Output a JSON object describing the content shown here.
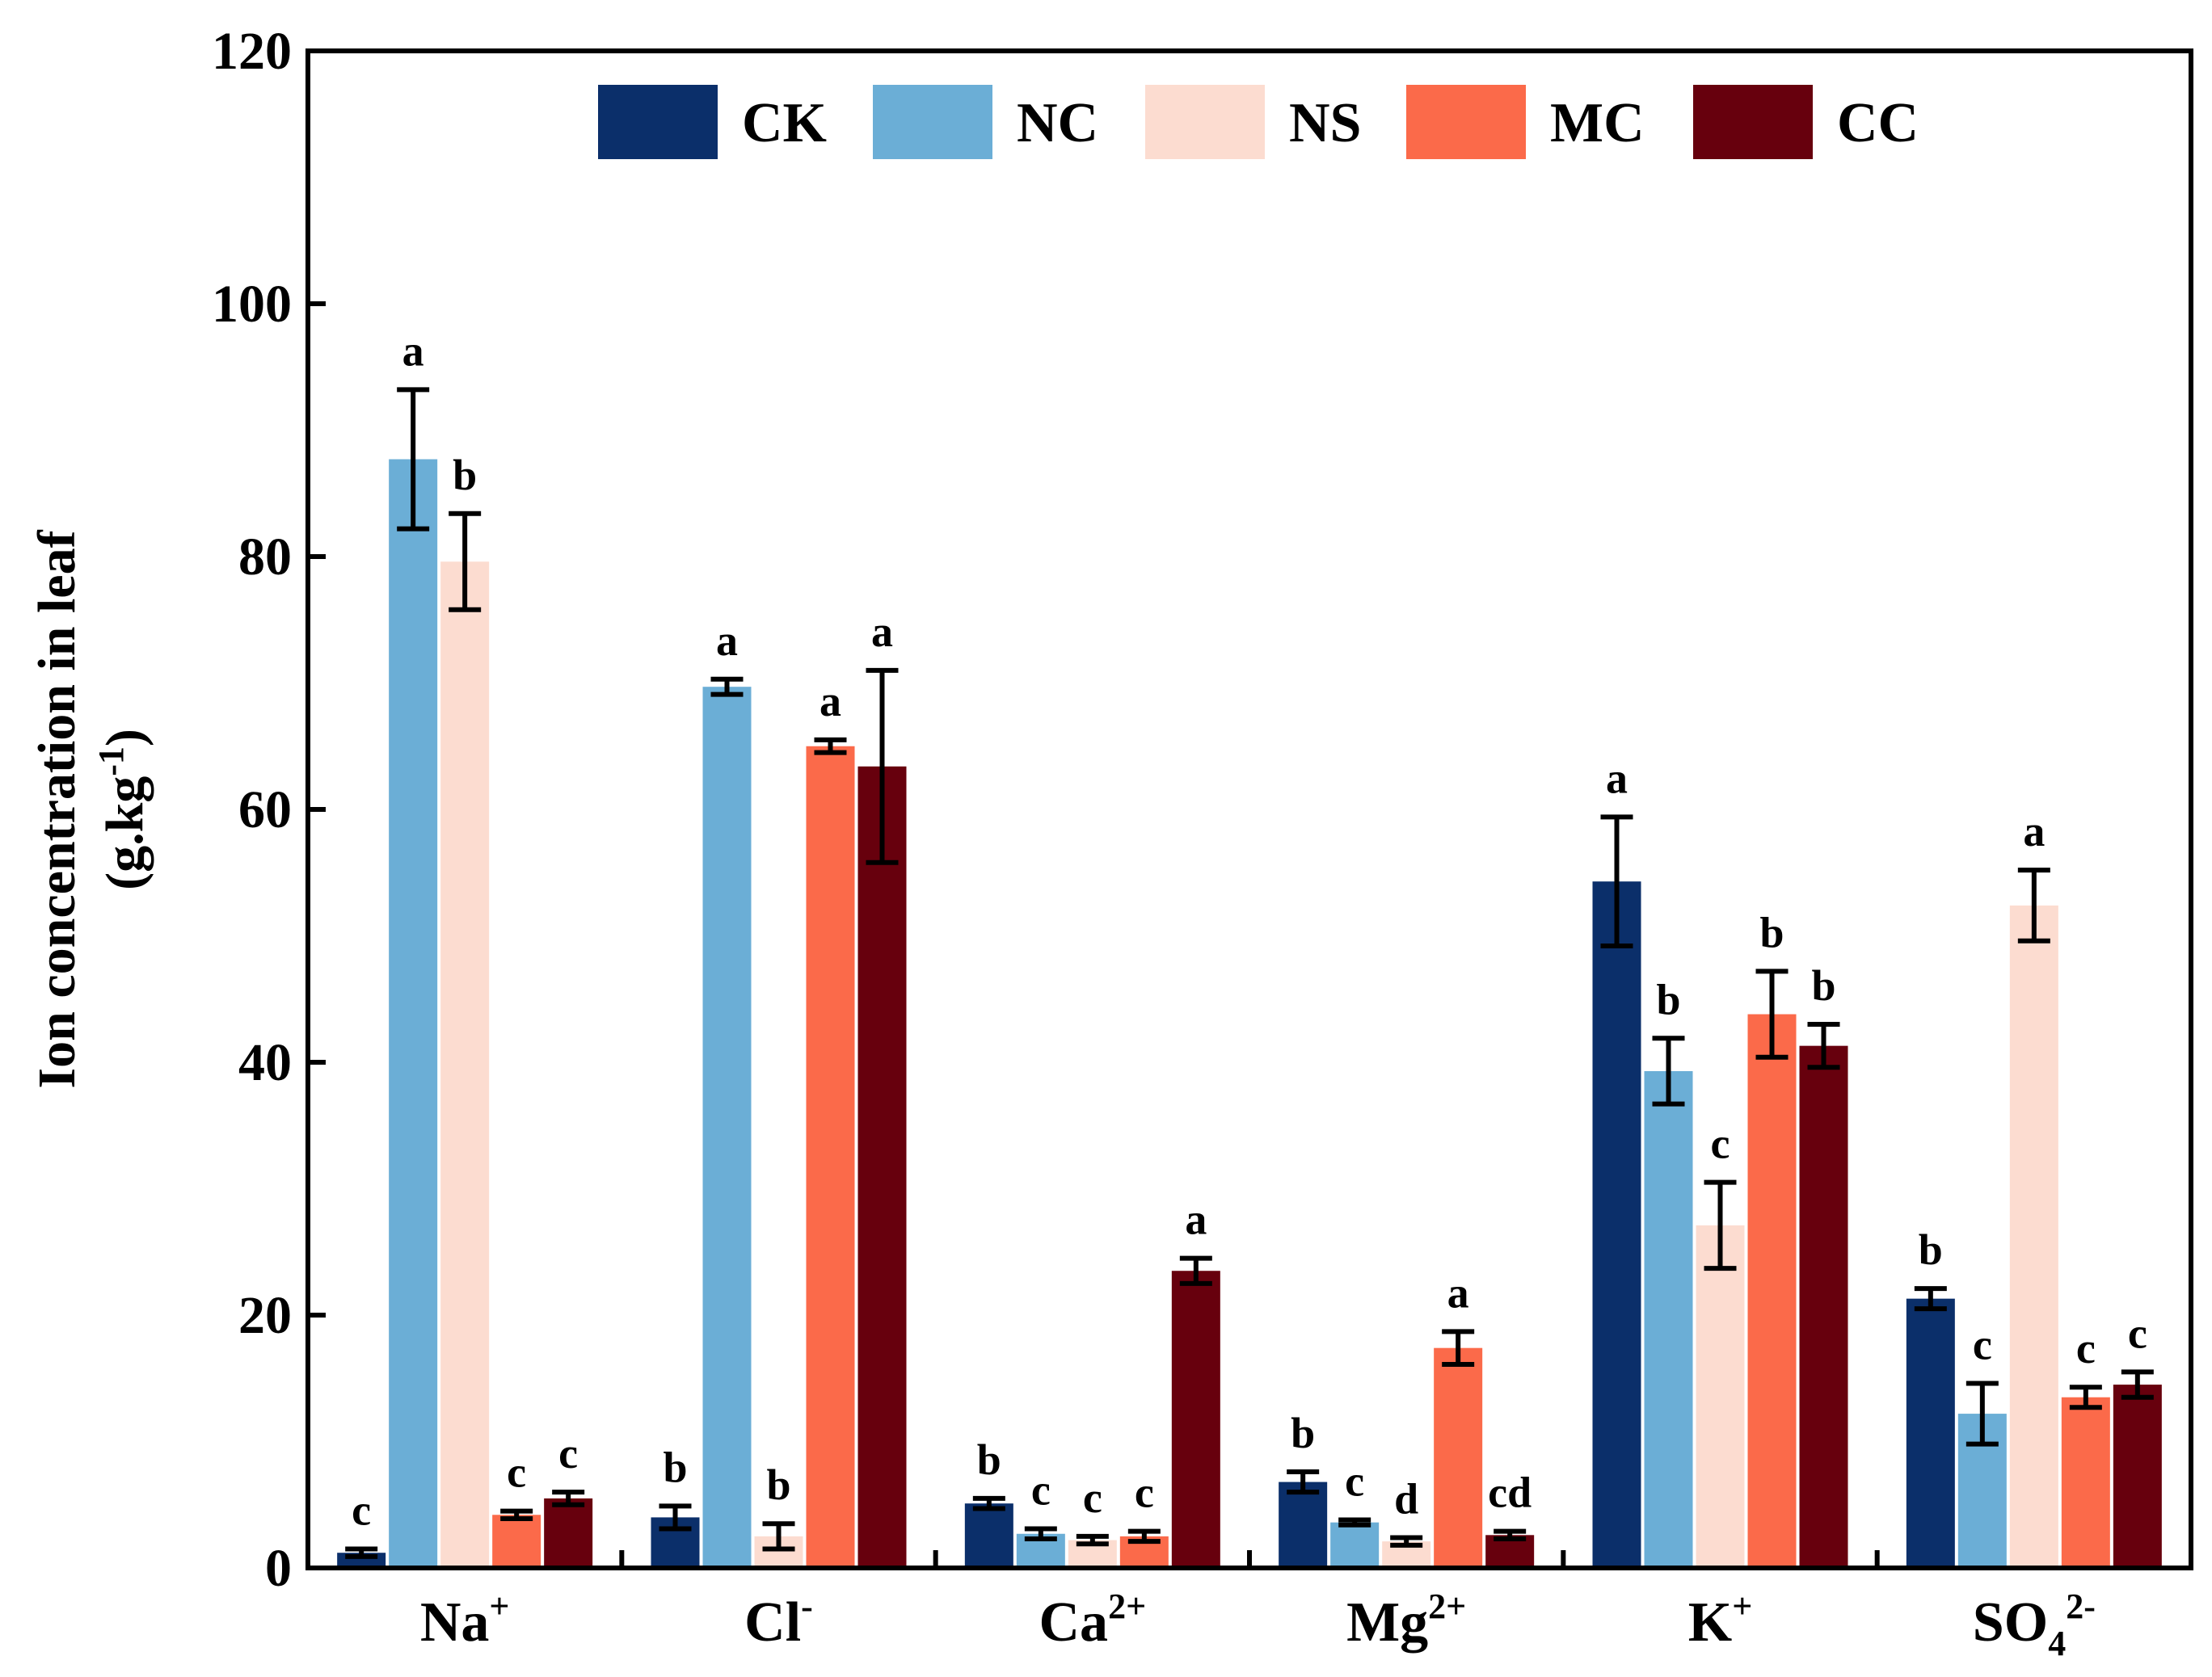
{
  "chart_data": {
    "type": "bar",
    "title": "",
    "xlabel": "",
    "ylabel_line1": "Ion concentration in leaf",
    "ylabel_line2": "(g.kg",
    "ylabel_sup": "-1",
    "ylabel_end": ")",
    "ylim": [
      0,
      120
    ],
    "yticks": [
      0,
      20,
      40,
      60,
      80,
      100,
      120
    ],
    "legend_position": "top",
    "categories": [
      {
        "base": "Na",
        "sub": "",
        "sup": "+"
      },
      {
        "base": "Cl",
        "sub": "",
        "sup": "-"
      },
      {
        "base": "Ca",
        "sub": "",
        "sup": "2+"
      },
      {
        "base": "Mg",
        "sub": "",
        "sup": "2+"
      },
      {
        "base": "K",
        "sub": "",
        "sup": "+"
      },
      {
        "base": "SO",
        "sub": "4",
        "sup": "2-"
      }
    ],
    "series": [
      {
        "name": "CK",
        "color": "#0b2f6a",
        "values": [
          1.2,
          4.0,
          5.1,
          6.8,
          54.3,
          21.3
        ],
        "errors": [
          0.3,
          0.9,
          0.4,
          0.8,
          5.1,
          0.8
        ],
        "letters": [
          "c",
          "b",
          "b",
          "b",
          "a",
          "b"
        ]
      },
      {
        "name": "NC",
        "color": "#6baed6",
        "values": [
          87.7,
          69.7,
          2.7,
          3.6,
          39.3,
          12.2
        ],
        "errors": [
          5.5,
          0.6,
          0.4,
          0.2,
          2.6,
          2.4
        ],
        "letters": [
          "a",
          "a",
          "c",
          "c",
          "b",
          "c"
        ]
      },
      {
        "name": "NS",
        "color": "#fcdcd0",
        "values": [
          79.6,
          2.5,
          2.2,
          2.1,
          27.1,
          52.4
        ],
        "errors": [
          3.8,
          1.0,
          0.3,
          0.3,
          3.4,
          2.8
        ],
        "letters": [
          "b",
          "b",
          "c",
          "d",
          "c",
          "a"
        ]
      },
      {
        "name": "MC",
        "color": "#fb6a4a",
        "values": [
          4.2,
          65.0,
          2.5,
          17.4,
          43.8,
          13.5
        ],
        "errors": [
          0.3,
          0.5,
          0.4,
          1.3,
          3.4,
          0.8
        ],
        "letters": [
          "c",
          "a",
          "c",
          "a",
          "b",
          "c"
        ]
      },
      {
        "name": "CC",
        "color": "#67000d",
        "values": [
          5.5,
          63.4,
          23.5,
          2.6,
          41.3,
          14.5
        ],
        "errors": [
          0.5,
          7.6,
          1.0,
          0.3,
          1.7,
          1.0
        ],
        "letters": [
          "c",
          "a",
          "a",
          "cd",
          "b",
          "c"
        ]
      }
    ]
  }
}
